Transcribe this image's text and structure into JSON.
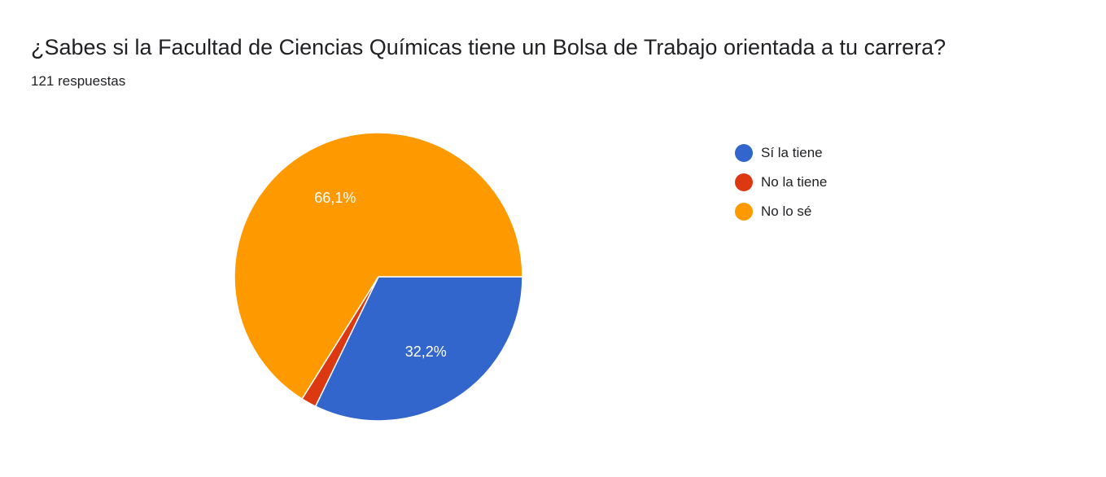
{
  "header": {
    "title": "¿Sabes si la Facultad de Ciencias Químicas tiene un Bolsa de Trabajo orientada a tu carrera?",
    "response_count": "121 respuestas"
  },
  "chart_data": {
    "type": "pie",
    "title": "¿Sabes si la Facultad de Ciencias Químicas tiene un Bolsa de Trabajo orientada a tu carrera?",
    "legend_position": "right",
    "slices": [
      {
        "label": "Sí la tiene",
        "value": 32.2,
        "display": "32,2%",
        "color": "#3366cc"
      },
      {
        "label": "No la tiene",
        "value": 1.7,
        "display": "",
        "color": "#dc3912"
      },
      {
        "label": "No lo sé",
        "value": 66.1,
        "display": "66,1%",
        "color": "#ff9900"
      }
    ]
  }
}
